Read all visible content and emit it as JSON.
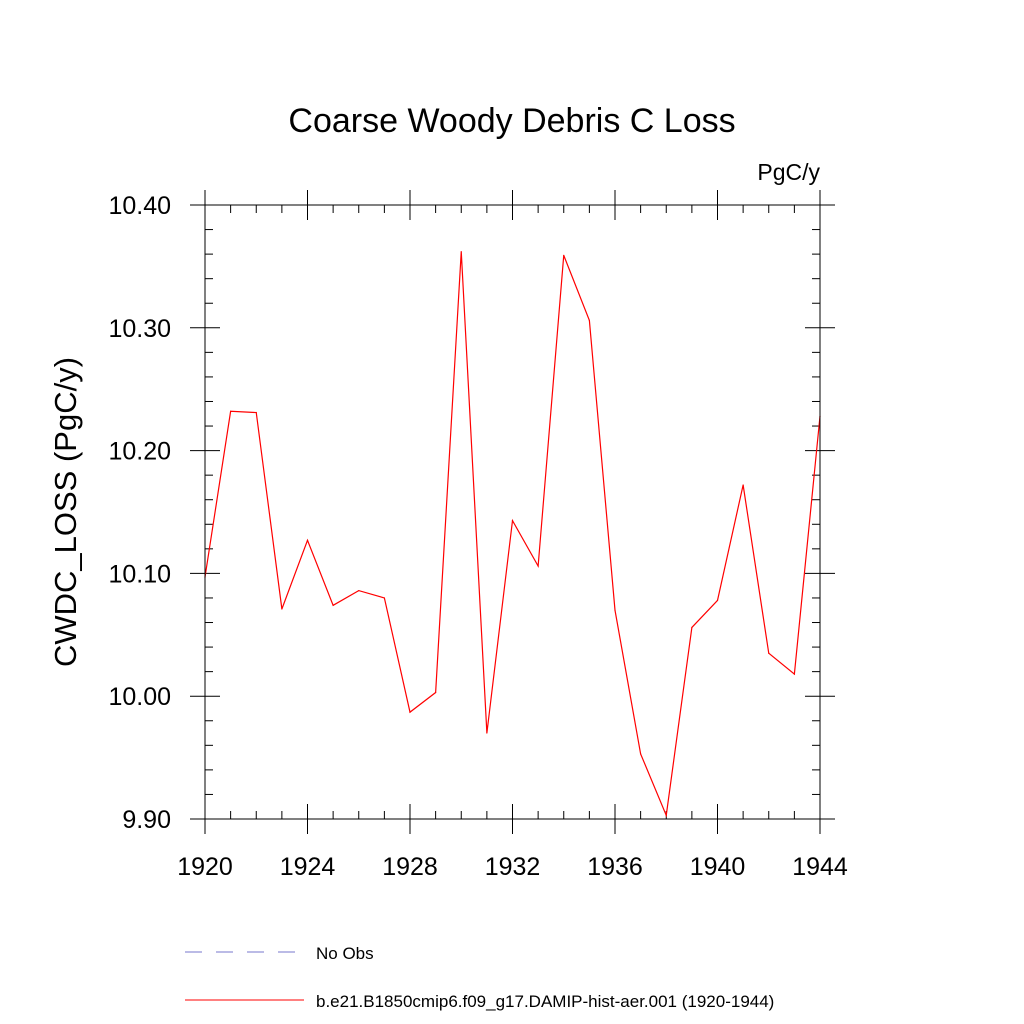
{
  "chart_data": {
    "type": "line",
    "title": "Coarse Woody Debris C Loss",
    "units": "PgC/y",
    "ylabel": "CWDC_LOSS  (PgC/y)",
    "xlabel": "",
    "xlim": [
      1920,
      1944
    ],
    "ylim": [
      9.9,
      10.4
    ],
    "x_ticks": [
      1920,
      1924,
      1928,
      1932,
      1936,
      1940,
      1944
    ],
    "x_tick_labels": [
      "1920",
      "1924",
      "1928",
      "1932",
      "1936",
      "1940",
      "1944"
    ],
    "y_ticks": [
      9.9,
      10.0,
      10.1,
      10.2,
      10.3,
      10.4
    ],
    "y_tick_labels": [
      "9.90",
      "10.00",
      "10.10",
      "10.20",
      "10.30",
      "10.40"
    ],
    "x_minor_step": 1,
    "y_minor_step": 0.02,
    "grid": false,
    "legend_position": "bottom",
    "series": [
      {
        "name": "b.e21.B1850cmip6.f09_g17.DAMIP-hist-aer.001 (1920-1944)",
        "color": "#ff0000",
        "style": "solid",
        "x": [
          1920,
          1921,
          1922,
          1923,
          1924,
          1925,
          1926,
          1927,
          1928,
          1929,
          1930,
          1931,
          1932,
          1933,
          1934,
          1935,
          1936,
          1937,
          1938,
          1939,
          1940,
          1941,
          1942,
          1943,
          1944
        ],
        "y": [
          10.097,
          10.232,
          10.231,
          10.071,
          10.127,
          10.074,
          10.086,
          10.08,
          9.987,
          10.003,
          10.362,
          9.97,
          10.143,
          10.106,
          10.359,
          10.306,
          10.07,
          9.953,
          9.903,
          10.056,
          10.078,
          10.172,
          10.035,
          10.018,
          10.228
        ]
      }
    ],
    "legend": [
      {
        "label": "No Obs",
        "color": "#7777cc",
        "style": "dashed"
      },
      {
        "label": "b.e21.B1850cmip6.f09_g17.DAMIP-hist-aer.001 (1920-1944)",
        "color": "#ff0000",
        "style": "solid"
      }
    ]
  }
}
